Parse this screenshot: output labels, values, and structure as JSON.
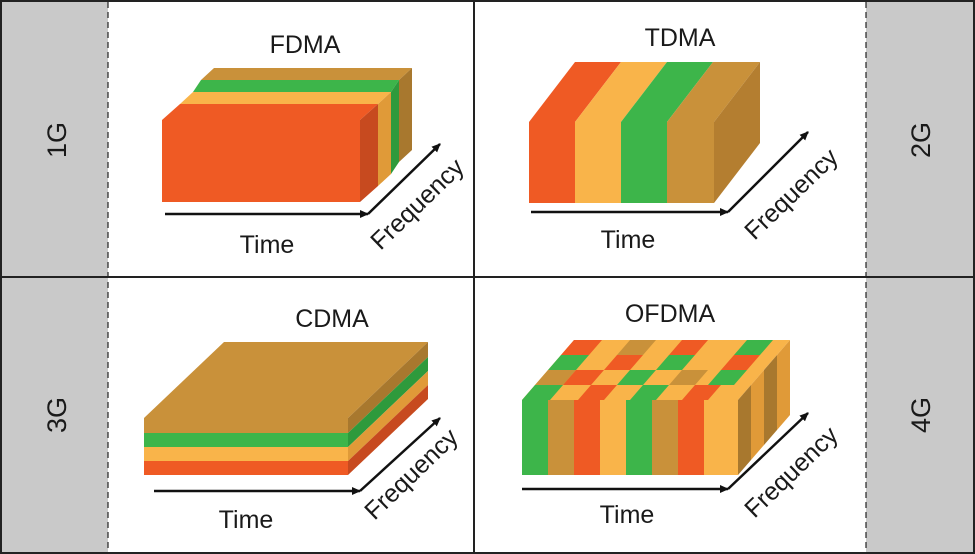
{
  "colors": {
    "red": "#ef5a24",
    "orange": "#f9b44a",
    "green": "#3db54a",
    "tan": "#c9913a",
    "generation_bg": "#c9c9c9",
    "border": "#222222"
  },
  "generations": {
    "left_top": "1G",
    "right_top": "2G",
    "left_bottom": "3G",
    "right_bottom": "4G"
  },
  "panels": {
    "fdma": {
      "title": "FDMA",
      "time_label": "Time",
      "frequency_label": "Frequency"
    },
    "tdma": {
      "title": "TDMA",
      "time_label": "Time",
      "frequency_label": "Frequency"
    },
    "cdma": {
      "title": "CDMA",
      "time_label": "Time",
      "frequency_label": "Frequency"
    },
    "ofdma": {
      "title": "OFDMA",
      "time_label": "Time",
      "frequency_label": "Frequency"
    }
  }
}
